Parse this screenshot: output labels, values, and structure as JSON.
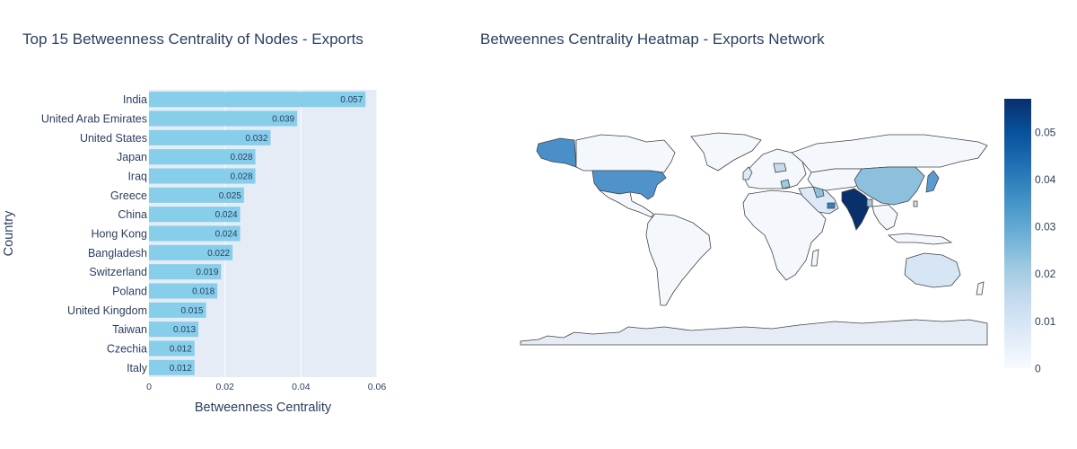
{
  "bar_title": "Top 15 Betweenness Centrality of Nodes - Exports",
  "map_title": "Betweennes Centrality Heatmap - Exports Network",
  "colors": {
    "bar": "#87ceeb",
    "plot_bg": "#e5ecf6",
    "map_land": "#f4f8fd",
    "map_ocean": "#e5ecf6",
    "text": "#2a3f5f",
    "border": "#444444"
  },
  "chart_data": [
    {
      "type": "bar",
      "orientation": "horizontal",
      "title": "Top 15 Betweenness Centrality of Nodes - Exports",
      "xlabel": "Betweenness Centrality",
      "ylabel": "Country",
      "xlim": [
        0,
        0.06
      ],
      "x_ticks": [
        "0",
        "0.02",
        "0.04",
        "0.06"
      ],
      "categories": [
        "India",
        "United Arab Emirates",
        "United States",
        "Japan",
        "Iraq",
        "Greece",
        "China",
        "Hong Kong",
        "Bangladesh",
        "Switzerland",
        "Poland",
        "United Kingdom",
        "Taiwan",
        "Czechia",
        "Italy"
      ],
      "values": [
        0.057,
        0.039,
        0.032,
        0.028,
        0.028,
        0.025,
        0.024,
        0.024,
        0.022,
        0.019,
        0.018,
        0.015,
        0.013,
        0.012,
        0.012
      ],
      "value_labels": [
        "0.057",
        "0.039",
        "0.032",
        "0.028",
        "0.028",
        "0.025",
        "0.024",
        "0.024",
        "0.022",
        "0.019",
        "0.018",
        "0.015",
        "0.013",
        "0.012",
        "0.012"
      ],
      "grid": true
    },
    {
      "type": "heatmap",
      "subtype": "choropleth",
      "title": "Betweennes Centrality Heatmap - Exports Network",
      "colorscale": "Blues",
      "zlim": [
        0,
        0.057
      ],
      "colorbar_ticks": [
        "0",
        "0.01",
        "0.02",
        "0.03",
        "0.04",
        "0.05"
      ],
      "colorbar_tick_values": [
        0,
        0.01,
        0.02,
        0.03,
        0.04,
        0.05
      ]
    }
  ]
}
